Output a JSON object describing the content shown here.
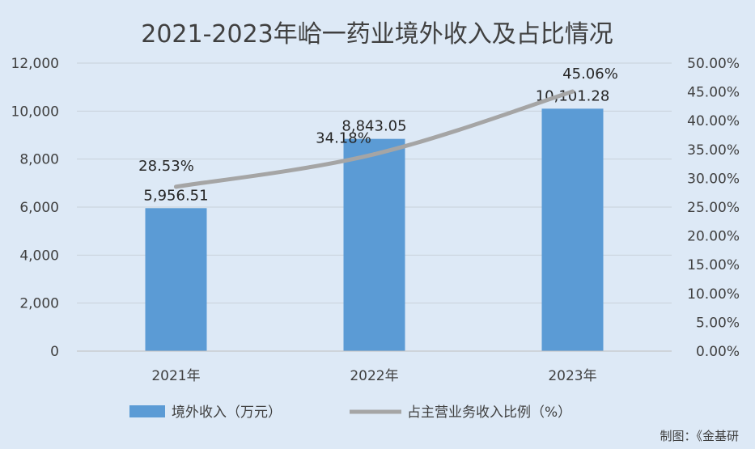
{
  "chart_data": {
    "type": "bar",
    "title": "2021-2023年峆一药业境外收入及占比情况",
    "categories": [
      "2021年",
      "2022年",
      "2023年"
    ],
    "series": [
      {
        "name": "境外收入（万元）",
        "type": "bar",
        "axis": "left",
        "values": [
          5956.51,
          8843.05,
          10101.28
        ],
        "labels": [
          "5,956.51",
          "8,843.05",
          "10,101.28"
        ],
        "color": "#5b9bd5"
      },
      {
        "name": "占主营业务收入比例（%）",
        "type": "line",
        "axis": "right",
        "values": [
          28.53,
          34.18,
          45.06
        ],
        "labels": [
          "28.53%",
          "34.18%",
          "45.06%"
        ],
        "color": "#a5a5a5"
      }
    ],
    "ylim_left": [
      0,
      12000
    ],
    "yticks_left": [
      "0",
      "2,000",
      "4,000",
      "6,000",
      "8,000",
      "10,000",
      "12,000"
    ],
    "ylim_right": [
      0,
      50
    ],
    "yticks_right": [
      "0.00%",
      "5.00%",
      "10.00%",
      "15.00%",
      "20.00%",
      "25.00%",
      "30.00%",
      "35.00%",
      "40.00%",
      "45.00%",
      "50.00%"
    ],
    "grid": true,
    "legend_position": "bottom",
    "credit": "制图：《金基研"
  }
}
